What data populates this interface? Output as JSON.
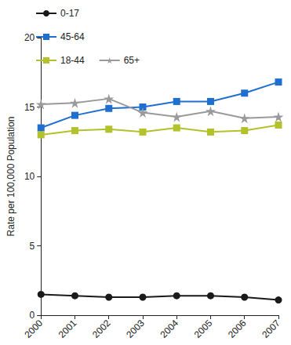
{
  "chart_data": {
    "type": "line",
    "y_label": "Rate per 100,000 Population",
    "categories": [
      "2000",
      "2001",
      "2002",
      "2003",
      "2004",
      "2005",
      "2006",
      "2007"
    ],
    "series": [
      {
        "name": "0-17",
        "color": "#1a1a1a",
        "marker": "circle",
        "values": [
          1.5,
          1.4,
          1.3,
          1.3,
          1.4,
          1.4,
          1.3,
          1.1
        ]
      },
      {
        "name": "45-64",
        "color": "#1f6fd0",
        "marker": "square",
        "values": [
          13.5,
          14.4,
          14.9,
          15.0,
          15.4,
          15.4,
          16.0,
          16.8
        ]
      },
      {
        "name": "18-44",
        "color": "#b3c12a",
        "marker": "square",
        "values": [
          13.0,
          13.3,
          13.4,
          13.2,
          13.5,
          13.2,
          13.3,
          13.7
        ]
      },
      {
        "name": "65+",
        "color": "#9a9a9a",
        "marker": "star",
        "values": [
          15.2,
          15.3,
          15.6,
          14.6,
          14.3,
          14.7,
          14.2,
          14.3
        ]
      }
    ],
    "ylim": [
      0,
      20
    ],
    "yticks": [
      0,
      5,
      10,
      15,
      20
    ],
    "grid": false,
    "legend": "top-left"
  }
}
